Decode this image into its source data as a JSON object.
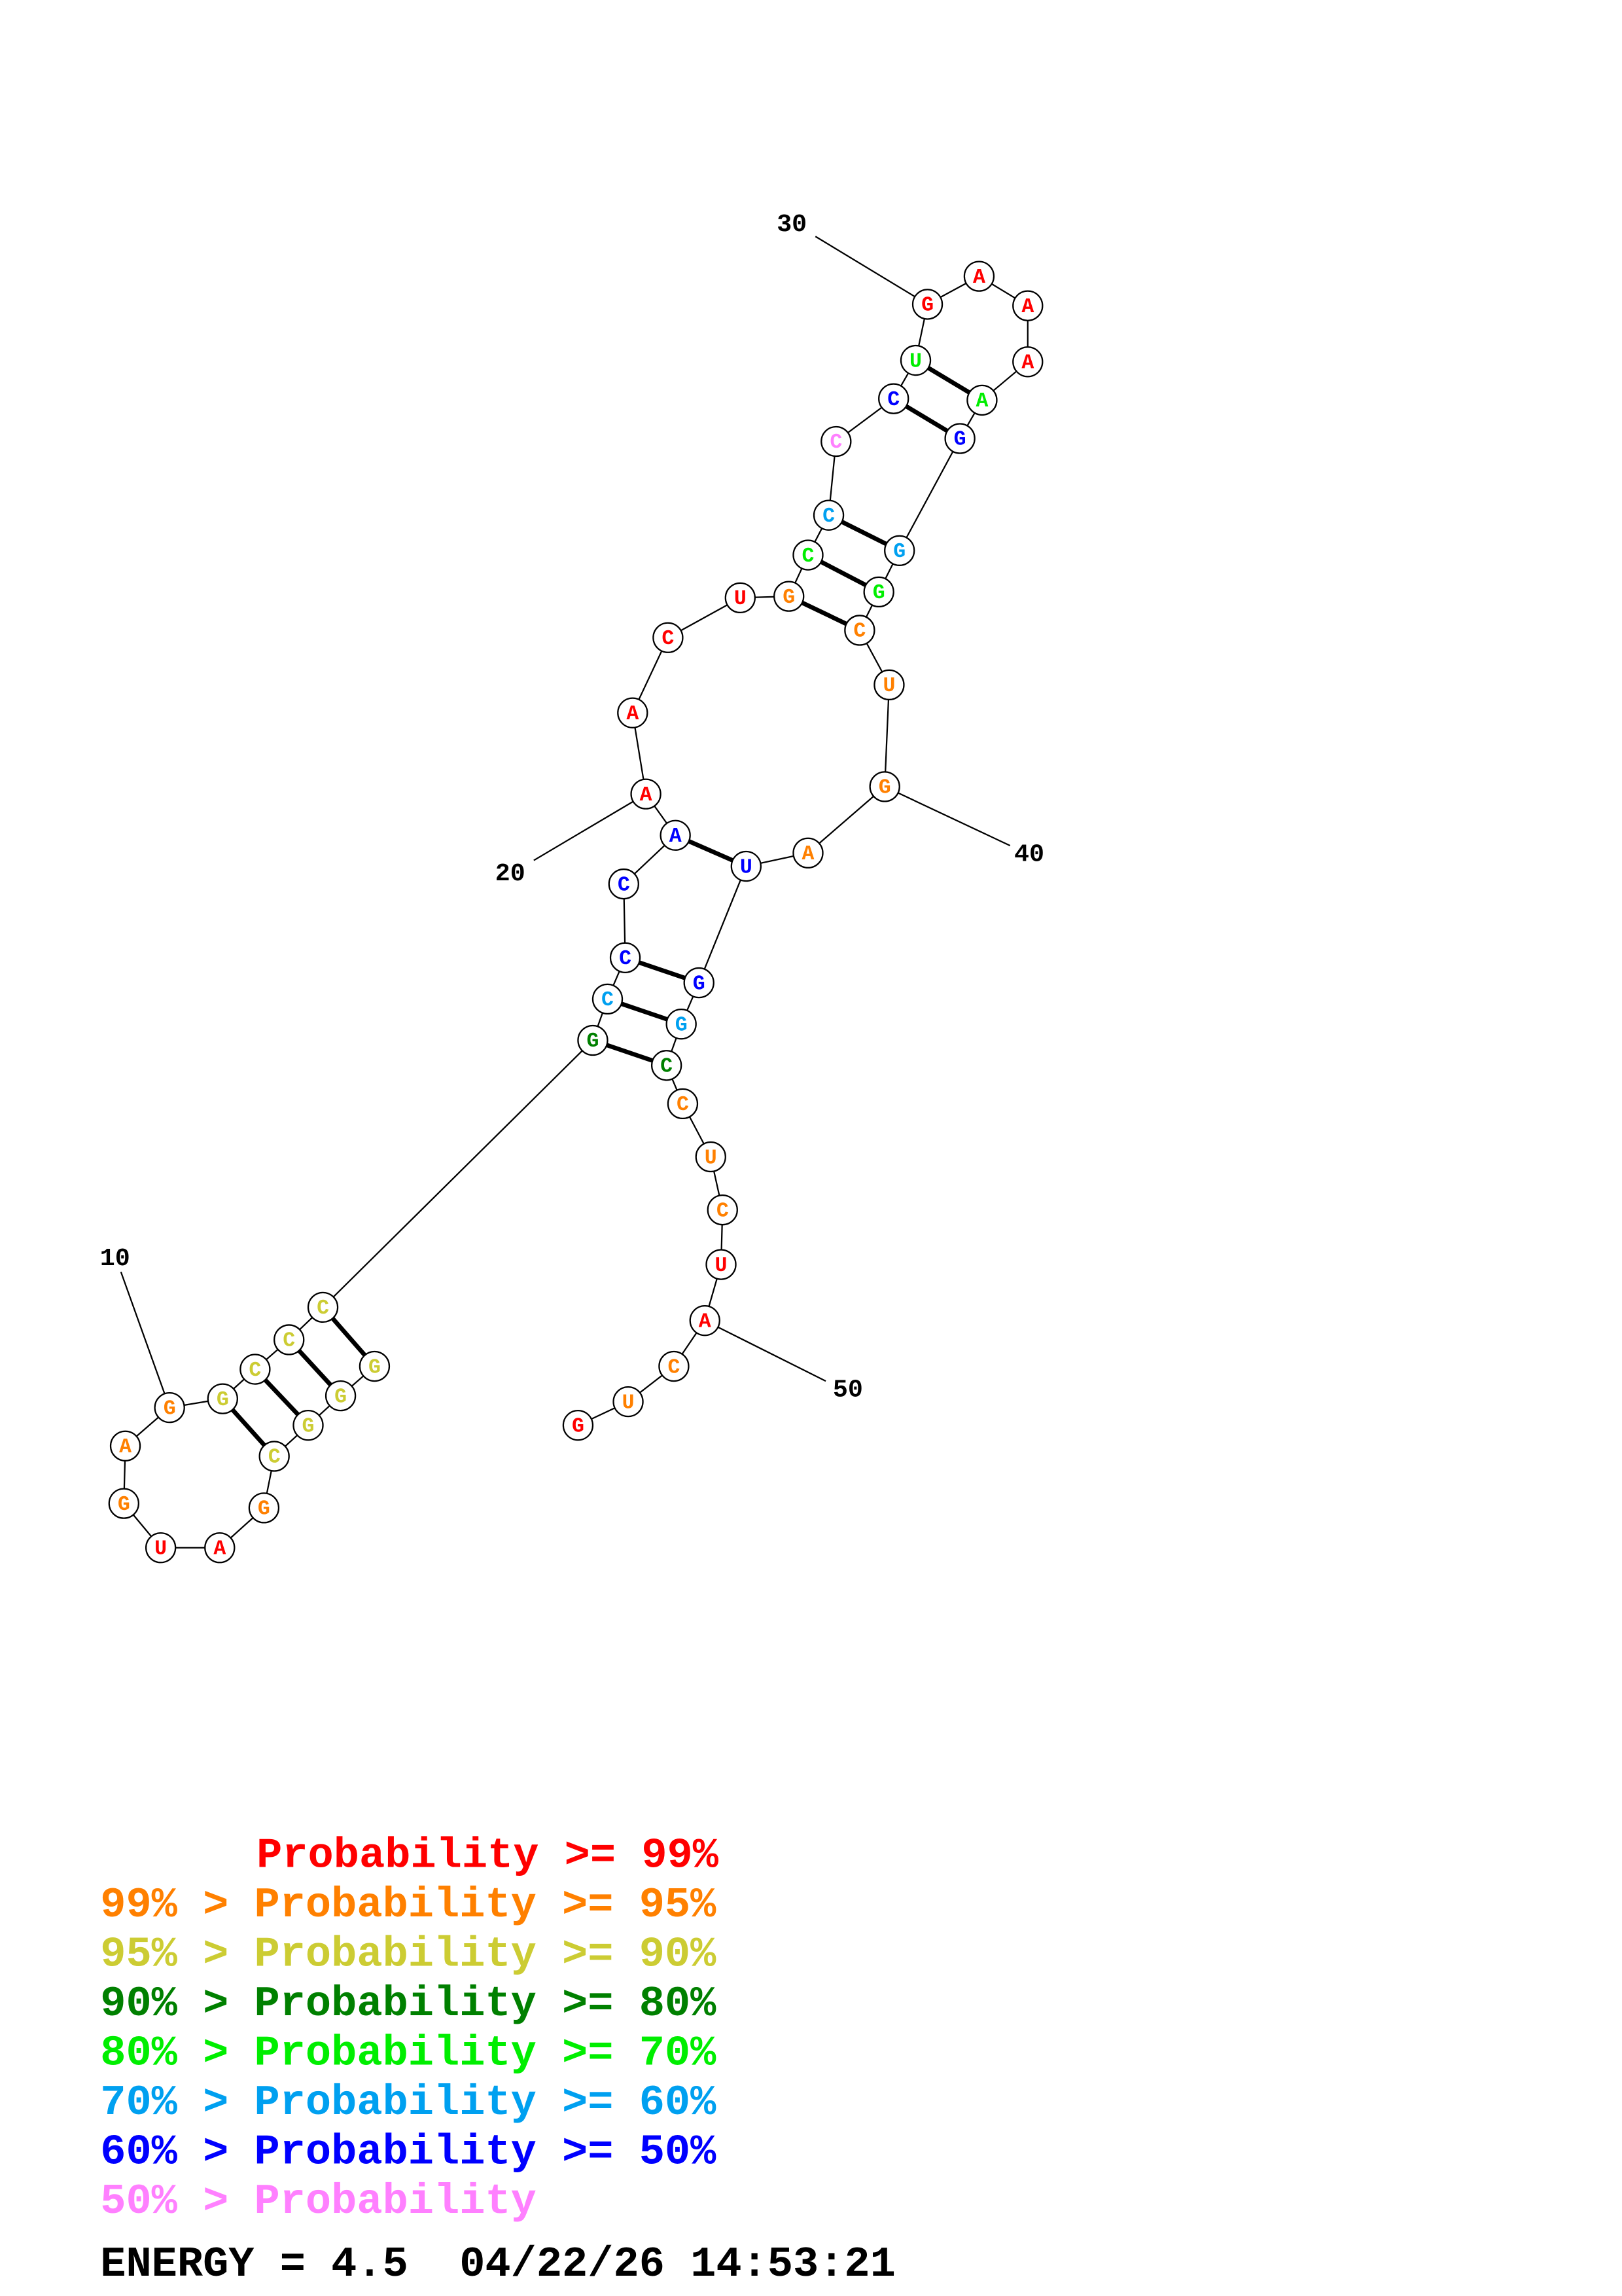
{
  "nodes": [
    {
      "label": "G",
      "color": "#cccc33"
    },
    {
      "label": "G",
      "color": "#cccc33"
    },
    {
      "label": "G",
      "color": "#cccc33"
    },
    {
      "label": "C",
      "color": "#cccc33"
    },
    {
      "label": "G",
      "color": "#ff8000"
    },
    {
      "label": "A",
      "color": "#ff0000"
    },
    {
      "label": "U",
      "color": "#ff0000"
    },
    {
      "label": "G",
      "color": "#ff8000"
    },
    {
      "label": "A",
      "color": "#ff8000"
    },
    {
      "label": "G",
      "color": "#ff8000"
    },
    {
      "label": "G",
      "color": "#cccc33"
    },
    {
      "label": "C",
      "color": "#cccc33"
    },
    {
      "label": "C",
      "color": "#cccc33"
    },
    {
      "label": "C",
      "color": "#cccc33"
    },
    {
      "label": "G",
      "color": "#008000"
    },
    {
      "label": "C",
      "color": "#00a0f0"
    },
    {
      "label": "C",
      "color": "#0000ff"
    },
    {
      "label": "C",
      "color": "#0000ff"
    },
    {
      "label": "A",
      "color": "#0000ff"
    },
    {
      "label": "A",
      "color": "#ff0000"
    },
    {
      "label": "A",
      "color": "#ff0000"
    },
    {
      "label": "C",
      "color": "#ff0000"
    },
    {
      "label": "U",
      "color": "#ff0000"
    },
    {
      "label": "G",
      "color": "#ff8000"
    },
    {
      "label": "C",
      "color": "#00ee00"
    },
    {
      "label": "C",
      "color": "#00a0f0"
    },
    {
      "label": "C",
      "color": "#ff80ff"
    },
    {
      "label": "C",
      "color": "#0000ff"
    },
    {
      "label": "U",
      "color": "#00ee00"
    },
    {
      "label": "G",
      "color": "#ff0000"
    },
    {
      "label": "A",
      "color": "#ff0000"
    },
    {
      "label": "A",
      "color": "#ff0000"
    },
    {
      "label": "A",
      "color": "#ff0000"
    },
    {
      "label": "A",
      "color": "#00ee00"
    },
    {
      "label": "G",
      "color": "#0000ff"
    },
    {
      "label": "G",
      "color": "#00a0f0"
    },
    {
      "label": "G",
      "color": "#00ee00"
    },
    {
      "label": "C",
      "color": "#ff8000"
    },
    {
      "label": "U",
      "color": "#ff8000"
    },
    {
      "label": "G",
      "color": "#ff8000"
    },
    {
      "label": "A",
      "color": "#ff8000"
    },
    {
      "label": "U",
      "color": "#0000ff"
    },
    {
      "label": "G",
      "color": "#0000ff"
    },
    {
      "label": "G",
      "color": "#00a0f0"
    },
    {
      "label": "C",
      "color": "#008000"
    },
    {
      "label": "C",
      "color": "#ff8000"
    },
    {
      "label": "U",
      "color": "#ff8000"
    },
    {
      "label": "C",
      "color": "#ff8000"
    },
    {
      "label": "U",
      "color": "#ff0000"
    },
    {
      "label": "A",
      "color": "#ff0000"
    },
    {
      "label": "C",
      "color": "#ff8000"
    },
    {
      "label": "U",
      "color": "#ff8000"
    },
    {
      "label": "G",
      "color": "#ff0000"
    }
  ],
  "position_labels": [
    "10",
    "20",
    "30",
    "40",
    "50"
  ],
  "legend": [
    {
      "text": "Probability >= 99%",
      "color": "#ff0000"
    },
    {
      "text": "99% > Probability >= 95%",
      "color": "#ff8000"
    },
    {
      "text": "95% > Probability >= 90%",
      "color": "#cccc33"
    },
    {
      "text": "90% > Probability >= 80%",
      "color": "#008000"
    },
    {
      "text": "80% > Probability >= 70%",
      "color": "#00ee00"
    },
    {
      "text": "70% > Probability >= 60%",
      "color": "#00a0f0"
    },
    {
      "text": "60% > Probability >= 50%",
      "color": "#0000ff"
    },
    {
      "text": "50% > Probability",
      "color": "#ff80ff"
    }
  ],
  "footer": "ENERGY = 4.5  04/22/26 14:53:21"
}
